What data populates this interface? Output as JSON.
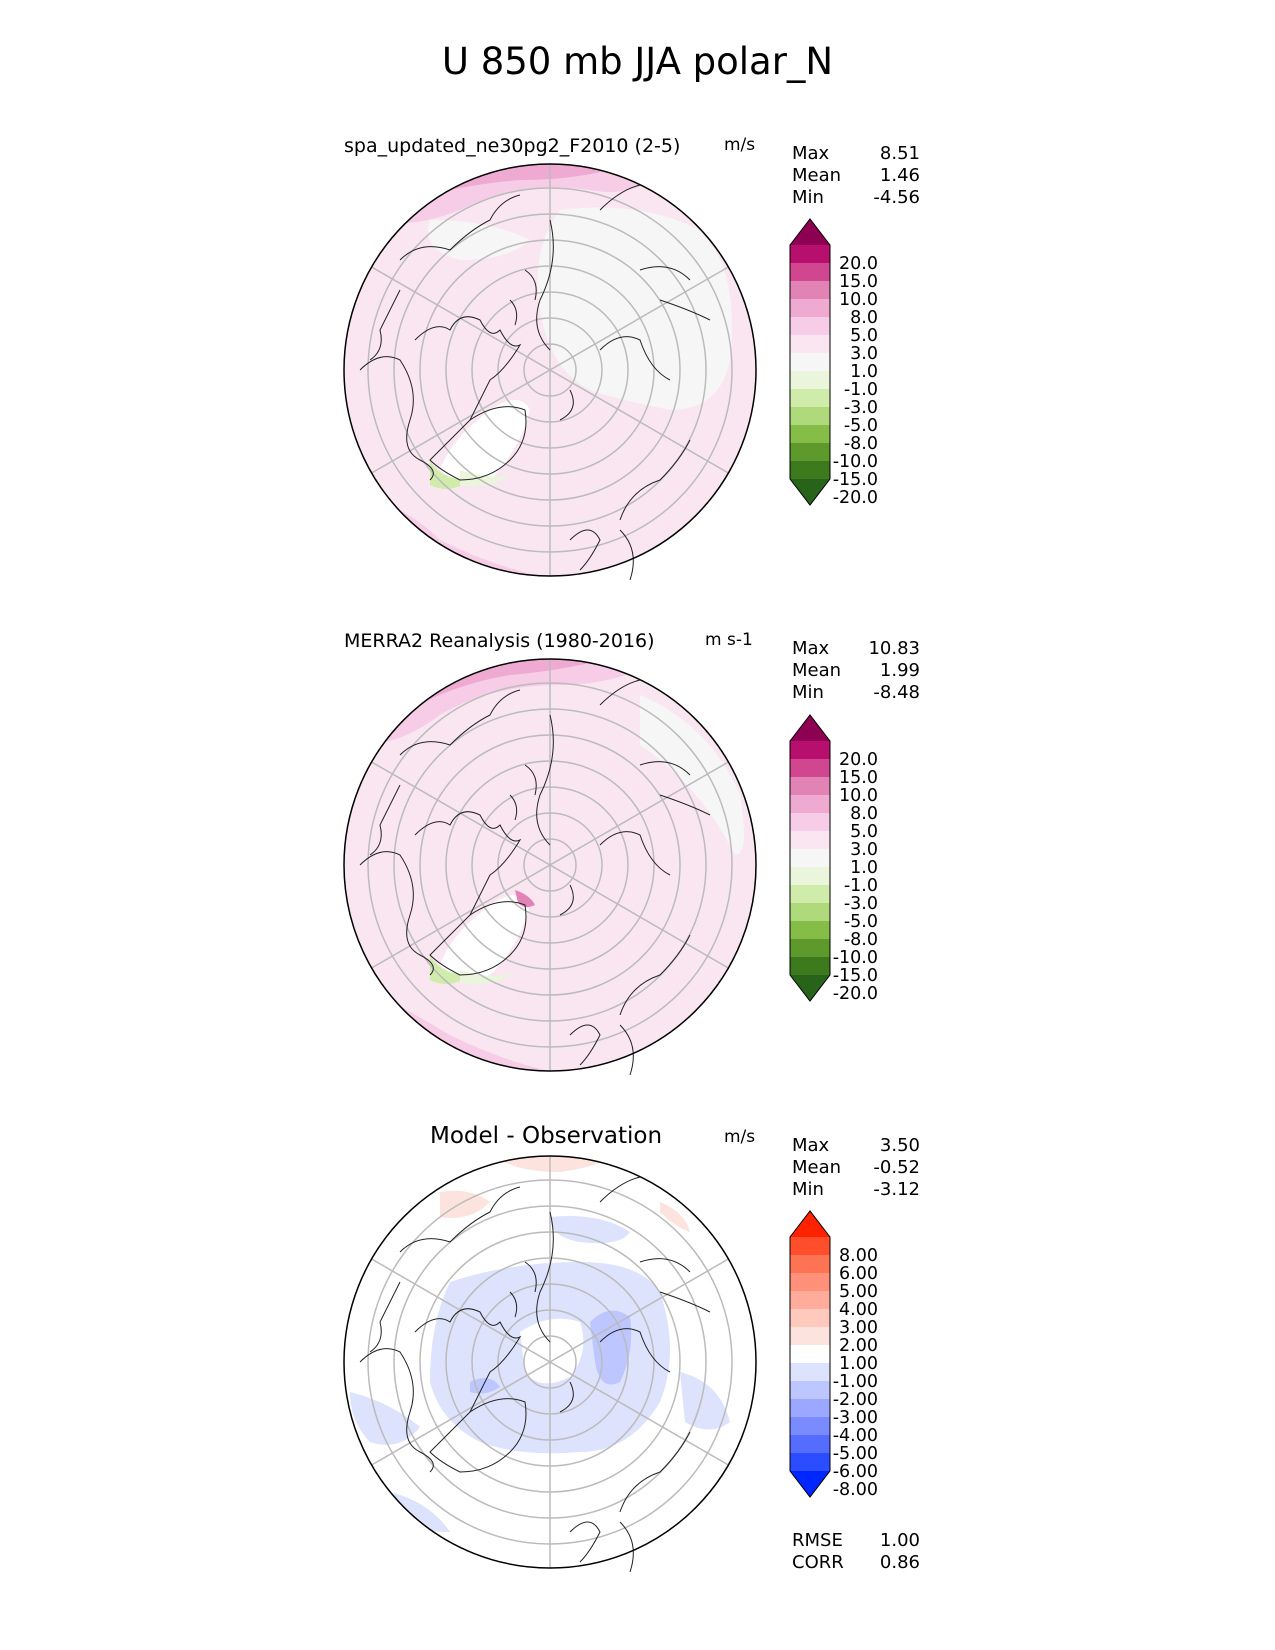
{
  "title": "U 850 mb JJA polar_N",
  "panels": [
    {
      "id": "test",
      "title": "spa_updated_ne30pg2_F2010 (2-5)",
      "units": "m/s",
      "stats": {
        "max_label": "Max",
        "max": "8.51",
        "mean_label": "Mean",
        "mean": "1.46",
        "min_label": "Min",
        "min": "-4.56"
      },
      "colorbar": {
        "ticks": [
          "20.0",
          "15.0",
          "10.0",
          "8.0",
          "5.0",
          "3.0",
          "1.0",
          "-1.0",
          "-3.0",
          "-5.0",
          "-8.0",
          "-10.0",
          "-15.0",
          "-20.0"
        ],
        "colors": [
          "#8e0152",
          "#b70f6e",
          "#d0478f",
          "#e283b5",
          "#efaad2",
          "#f6cce6",
          "#fae6f1",
          "#f6f6f6",
          "#ebf5dc",
          "#d0ecaa",
          "#afda7b",
          "#86bd48",
          "#5d9a2b",
          "#3d7a1e",
          "#276419"
        ]
      }
    },
    {
      "id": "reference",
      "title": "MERRA2 Reanalysis (1980-2016)",
      "units": "m s-1",
      "stats": {
        "max_label": "Max",
        "max": "10.83",
        "mean_label": "Mean",
        "mean": "1.99",
        "min_label": "Min",
        "min": "-8.48"
      },
      "colorbar": {
        "ticks": [
          "20.0",
          "15.0",
          "10.0",
          "8.0",
          "5.0",
          "3.0",
          "1.0",
          "-1.0",
          "-3.0",
          "-5.0",
          "-8.0",
          "-10.0",
          "-15.0",
          "-20.0"
        ],
        "colors": [
          "#8e0152",
          "#b70f6e",
          "#d0478f",
          "#e283b5",
          "#efaad2",
          "#f6cce6",
          "#fae6f1",
          "#f6f6f6",
          "#ebf5dc",
          "#d0ecaa",
          "#afda7b",
          "#86bd48",
          "#5d9a2b",
          "#3d7a1e",
          "#276419"
        ]
      }
    },
    {
      "id": "diff",
      "title": "Model - Observation",
      "units": "m/s",
      "stats": {
        "max_label": "Max",
        "max": "3.50",
        "mean_label": "Mean",
        "mean": "-0.52",
        "min_label": "Min",
        "min": "-3.12"
      },
      "colorbar": {
        "ticks": [
          "8.00",
          "6.00",
          "5.00",
          "4.00",
          "3.00",
          "2.00",
          "1.00",
          "-1.00",
          "-2.00",
          "-3.00",
          "-4.00",
          "-5.00",
          "-6.00",
          "-8.00"
        ],
        "colors": [
          "#ff2200",
          "#ff4e2b",
          "#ff7355",
          "#ff9079",
          "#ffac9c",
          "#ffc9bd",
          "#fde3dd",
          "#ffffff",
          "#dde2fd",
          "#bdc6ff",
          "#9ca8ff",
          "#798bff",
          "#556dff",
          "#2b4dff",
          "#0027ff"
        ]
      },
      "rmse_label": "RMSE",
      "rmse": "1.00",
      "corr_label": "CORR",
      "corr": "0.86"
    }
  ]
}
